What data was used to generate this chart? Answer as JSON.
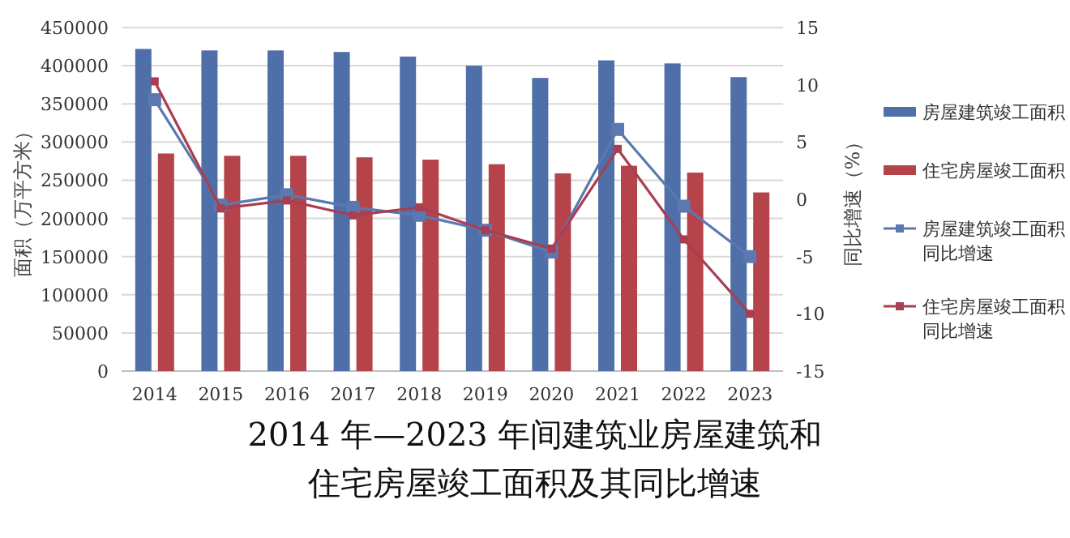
{
  "chart_data": {
    "type": "bar",
    "title": "2014 年—2023 年间建筑业房屋建筑和住宅房屋竣工面积及其同比增速",
    "ylabel": "面积（万平方米）",
    "y2label": "同比增速（%）",
    "categories": [
      "2014",
      "2015",
      "2016",
      "2017",
      "2018",
      "2019",
      "2020",
      "2021",
      "2022",
      "2023"
    ],
    "series": [
      {
        "name": "房屋建筑竣工面积",
        "color": "#4f6fa8",
        "values": [
          422000,
          420000,
          420000,
          418000,
          412000,
          400000,
          384000,
          407000,
          403000,
          385000
        ]
      },
      {
        "name": "住宅房屋竣工面积",
        "color": "#b5434a",
        "values": [
          285000,
          282000,
          282000,
          280000,
          277000,
          271000,
          259000,
          269000,
          260000,
          234000
        ]
      },
      {
        "name": "房屋建筑竣工面积同比增速",
        "type": "line",
        "axis": "y2",
        "color": "#5b78b0",
        "values": [
          8.7,
          -0.5,
          0.4,
          -0.7,
          -1.4,
          -2.7,
          -4.6,
          6.1,
          -0.6,
          -5.0
        ]
      },
      {
        "name": "住宅房屋竣工面积同比增速",
        "type": "line",
        "axis": "y2",
        "color": "#a83e50",
        "values": [
          10.3,
          -0.8,
          -0.1,
          -1.4,
          -0.7,
          -2.7,
          -4.3,
          4.4,
          -3.5,
          -10.0
        ]
      }
    ],
    "ylim": [
      0,
      450000
    ],
    "yticks": [
      0,
      50000,
      100000,
      150000,
      200000,
      250000,
      300000,
      350000,
      400000,
      450000
    ],
    "y2lim": [
      -15,
      15
    ],
    "y2ticks": [
      -15,
      -10,
      -5,
      0,
      5,
      10,
      15
    ],
    "grid": "y",
    "legend": "right",
    "marker": "square"
  }
}
